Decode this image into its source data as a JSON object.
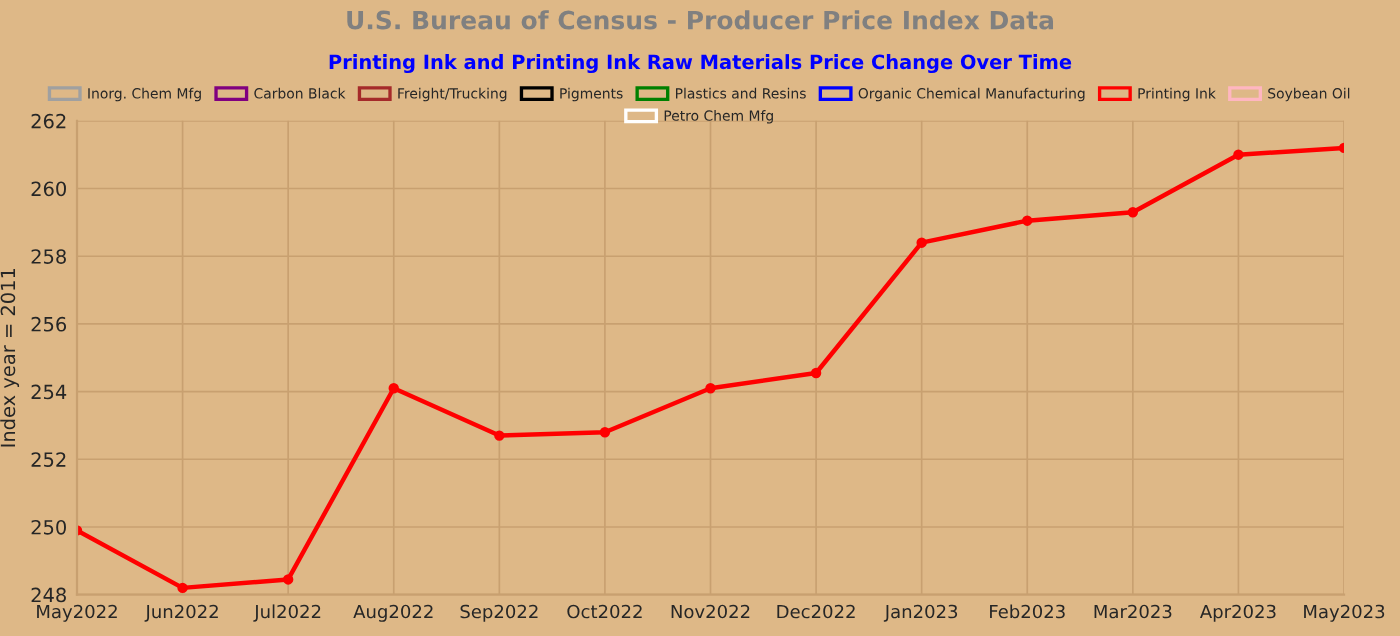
{
  "chart_data": {
    "type": "line",
    "title": "U.S. Bureau of Census - Producer Price Index Data",
    "subtitle": "Printing Ink and Printing Ink Raw Materials Price Change Over Time",
    "ylabel": "Index year = 2011",
    "categories": [
      "May2022",
      "Jun2022",
      "Jul2022",
      "Aug2022",
      "Sep2022",
      "Oct2022",
      "Nov2022",
      "Dec2022",
      "Jan2023",
      "Feb2023",
      "Mar2023",
      "Apr2023",
      "May2023"
    ],
    "series": [
      {
        "name": "Inorg. Chem Mfg",
        "color": "#a0a0a0",
        "values": [
          null,
          null,
          null,
          null,
          null,
          null,
          null,
          null,
          null,
          null,
          null,
          null,
          null
        ]
      },
      {
        "name": "Carbon Black",
        "color": "#800080",
        "values": [
          null,
          null,
          null,
          null,
          null,
          null,
          null,
          null,
          null,
          null,
          null,
          null,
          null
        ]
      },
      {
        "name": "Freight/Trucking",
        "color": "#a52a2a",
        "values": [
          null,
          null,
          null,
          null,
          null,
          null,
          null,
          null,
          null,
          null,
          null,
          null,
          null
        ]
      },
      {
        "name": "Pigments",
        "color": "#000000",
        "values": [
          null,
          null,
          null,
          null,
          null,
          null,
          null,
          null,
          null,
          null,
          null,
          null,
          null
        ]
      },
      {
        "name": "Plastics and Resins",
        "color": "#008000",
        "values": [
          null,
          null,
          null,
          null,
          null,
          null,
          null,
          null,
          null,
          null,
          null,
          null,
          null
        ]
      },
      {
        "name": "Organic Chemical Manufacturing",
        "color": "#0000ff",
        "values": [
          null,
          null,
          null,
          null,
          null,
          null,
          null,
          null,
          null,
          null,
          null,
          null,
          null
        ]
      },
      {
        "name": "Printing Ink",
        "color": "#ff0000",
        "values": [
          249.9,
          248.2,
          248.45,
          254.1,
          252.7,
          252.8,
          254.1,
          254.55,
          258.4,
          259.05,
          259.3,
          261.0,
          261.2
        ]
      },
      {
        "name": "Soybean Oil",
        "color": "#ffb6c1",
        "values": [
          null,
          null,
          null,
          null,
          null,
          null,
          null,
          null,
          null,
          null,
          null,
          null,
          null
        ]
      },
      {
        "name": "Petro Chem Mfg",
        "color": "#ffffff",
        "values": [
          null,
          null,
          null,
          null,
          null,
          null,
          null,
          null,
          null,
          null,
          null,
          null,
          null
        ]
      }
    ],
    "ylim": [
      248,
      262
    ],
    "yticks": [
      248,
      250,
      252,
      254,
      256,
      258,
      260,
      262
    ],
    "grid": true,
    "legend": "top",
    "marker": "circle",
    "line_style": "solid"
  }
}
